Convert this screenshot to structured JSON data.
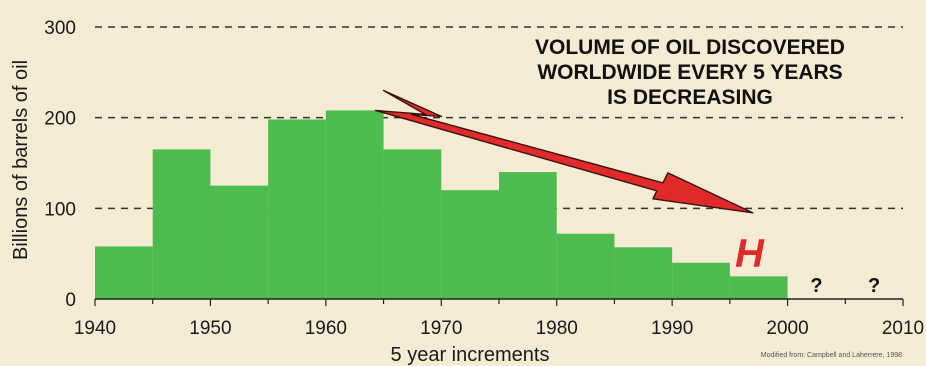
{
  "chart_data": {
    "type": "bar",
    "title_lines": [
      "VOLUME OF OIL DISCOVERED",
      "WORLDWIDE EVERY 5 YEARS",
      "IS DECREASING"
    ],
    "xlabel": "5 year increments",
    "ylabel": "Billions of barrels of oil",
    "x_ticks": [
      "1940",
      "1950",
      "1960",
      "1970",
      "1980",
      "1990",
      "2000",
      "2010"
    ],
    "y_ticks": [
      "0",
      "100",
      "200",
      "300"
    ],
    "xlim": [
      1940,
      2010
    ],
    "ylim": [
      0,
      300
    ],
    "grid": "dashed horizontal at 100, 200, 300",
    "bins": [
      {
        "start": 1940,
        "end": 1945,
        "value": 58
      },
      {
        "start": 1945,
        "end": 1950,
        "value": 165
      },
      {
        "start": 1950,
        "end": 1955,
        "value": 125
      },
      {
        "start": 1955,
        "end": 1960,
        "value": 198
      },
      {
        "start": 1960,
        "end": 1965,
        "value": 208
      },
      {
        "start": 1965,
        "end": 1970,
        "value": 165
      },
      {
        "start": 1970,
        "end": 1975,
        "value": 120
      },
      {
        "start": 1975,
        "end": 1980,
        "value": 140
      },
      {
        "start": 1980,
        "end": 1985,
        "value": 72
      },
      {
        "start": 1985,
        "end": 1990,
        "value": 57
      },
      {
        "start": 1990,
        "end": 1995,
        "value": 40
      },
      {
        "start": 1995,
        "end": 2000,
        "value": 25
      }
    ],
    "unknown_bins": [
      {
        "start": 2000,
        "end": 2005,
        "label": "?"
      },
      {
        "start": 2005,
        "end": 2010,
        "label": "?"
      }
    ],
    "arrow": {
      "from": [
        1965,
        230
      ],
      "to": [
        1997,
        95
      ]
    },
    "annotation": {
      "text": "H",
      "x": 1997,
      "y": 55
    },
    "credit": "Modified from: Campbell and Laherrere, 1998",
    "colors": {
      "bar": "#4dbb4d",
      "bar_edge": "#3a9a3a",
      "arrow": "#e12a2a",
      "h_mark": "#e12a2a",
      "grid": "#333333",
      "background": "#f3ebd3"
    }
  }
}
